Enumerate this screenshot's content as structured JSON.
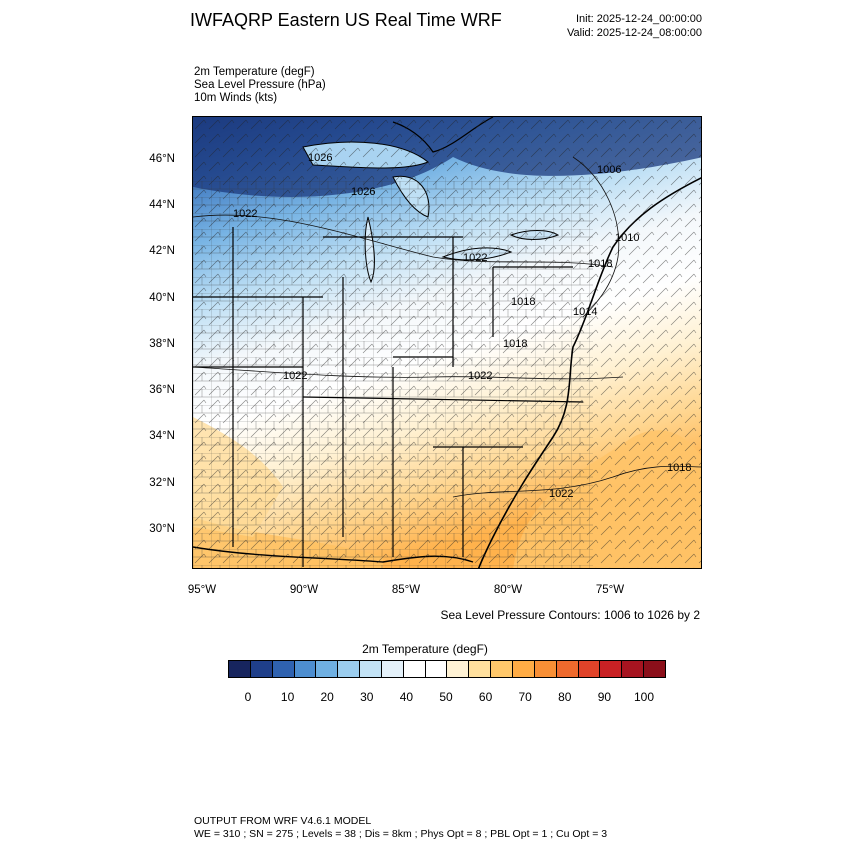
{
  "header": {
    "title": "IWFAQRP Eastern US Real Time WRF",
    "init": "Init: 2025-12-24_00:00:00",
    "valid": "Valid: 2025-12-24_08:00:00"
  },
  "fields": [
    "2m Temperature   (degF)",
    "Sea Level Pressure   (hPa)",
    "10m Winds   (kts)"
  ],
  "axes": {
    "lat_labels": [
      "46°N",
      "44°N",
      "42°N",
      "40°N",
      "38°N",
      "36°N",
      "34°N",
      "32°N",
      "30°N"
    ],
    "lon_labels": [
      "95°W",
      "90°W",
      "85°W",
      "80°W",
      "75°W"
    ]
  },
  "pressure_labels": [
    "1026",
    "1026",
    "1022",
    "1018",
    "1006",
    "1010",
    "1022",
    "1018",
    "1014",
    "1022",
    "1022",
    "1018",
    "1018",
    "1022"
  ],
  "contour_note": "Sea Level Pressure Contours: 1006 to 1026 by 2",
  "colorbar": {
    "title": "2m Temperature   (degF)",
    "colors": [
      "#17255e",
      "#1f3f8a",
      "#2f62b0",
      "#4d8ed0",
      "#6fb0e2",
      "#9bcdee",
      "#c3e3f6",
      "#e4f1fa",
      "#ffffff",
      "#ffffff",
      "#fff2d4",
      "#ffe09e",
      "#ffc86b",
      "#ffac45",
      "#f88f35",
      "#ef6a2d",
      "#e04329",
      "#c92124",
      "#a61420",
      "#8b0f1a"
    ],
    "tick_labels": [
      "0",
      "10",
      "20",
      "30",
      "40",
      "50",
      "60",
      "70",
      "80",
      "90",
      "100"
    ]
  },
  "footer": {
    "line1": "OUTPUT FROM WRF V4.6.1 MODEL",
    "line2": "WE = 310 ; SN = 275 ; Levels = 38 ; Dis = 8km ; Phys Opt = 8 ; PBL Opt = 1 ; Cu Opt = 3"
  }
}
